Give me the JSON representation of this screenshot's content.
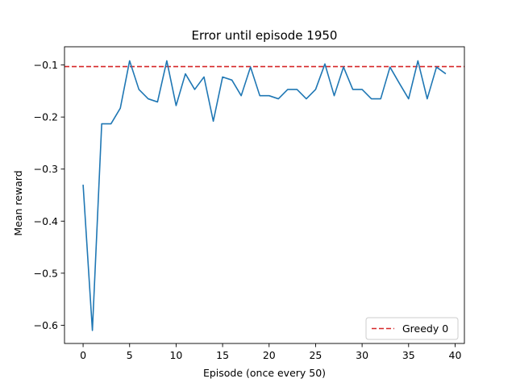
{
  "chart_data": {
    "type": "line",
    "title": "Error until episode 1950",
    "xlabel": "Episode (once every 50)",
    "ylabel": "Mean reward",
    "xlim": [
      -2,
      41
    ],
    "ylim": [
      -0.635,
      -0.065
    ],
    "xticks": [
      0,
      5,
      10,
      15,
      20,
      25,
      30,
      35,
      40
    ],
    "xtick_labels": [
      "0",
      "5",
      "10",
      "15",
      "20",
      "25",
      "30",
      "35",
      "40"
    ],
    "yticks": [
      -0.6,
      -0.5,
      -0.4,
      -0.3,
      -0.2,
      -0.1
    ],
    "ytick_labels": [
      "−0.6",
      "−0.5",
      "−0.4",
      "−0.3",
      "−0.2",
      "−0.1"
    ],
    "grid": false,
    "legend_position": "lower-right",
    "series": [
      {
        "color": "#1f77b4",
        "style": "solid",
        "x": [
          0,
          1,
          2,
          3,
          4,
          5,
          6,
          7,
          8,
          9,
          10,
          11,
          12,
          13,
          14,
          15,
          16,
          17,
          18,
          19,
          20,
          21,
          22,
          23,
          24,
          25,
          26,
          27,
          28,
          29,
          30,
          31,
          32,
          33,
          34,
          35,
          36,
          37,
          38,
          39
        ],
        "values": [
          -0.33,
          -0.61,
          -0.213,
          -0.213,
          -0.183,
          -0.092,
          -0.147,
          -0.165,
          -0.171,
          -0.092,
          -0.178,
          -0.117,
          -0.147,
          -0.123,
          -0.208,
          -0.123,
          -0.129,
          -0.159,
          -0.104,
          -0.159,
          -0.159,
          -0.165,
          -0.147,
          -0.147,
          -0.165,
          -0.147,
          -0.098,
          -0.159,
          -0.104,
          -0.147,
          -0.147,
          -0.165,
          -0.165,
          -0.104,
          -0.135,
          -0.165,
          -0.092,
          -0.165,
          -0.104,
          -0.117
        ]
      }
    ],
    "reference_lines": [
      {
        "name": "Greedy 0",
        "orientation": "horizontal",
        "value": -0.103,
        "color": "#d62728",
        "style": "dashed"
      }
    ]
  }
}
